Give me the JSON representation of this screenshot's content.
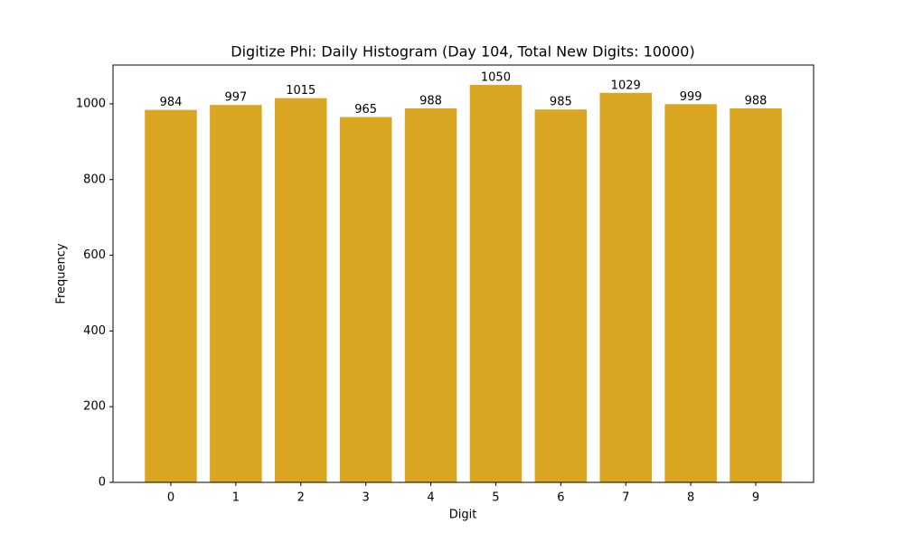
{
  "chart_data": {
    "type": "bar",
    "title": "Digitize Phi: Daily Histogram (Day 104, Total New Digits: 10000)",
    "x_label": "Digit",
    "y_label": "Frequency",
    "categories": [
      "0",
      "1",
      "2",
      "3",
      "4",
      "5",
      "6",
      "7",
      "8",
      "9"
    ],
    "values": [
      984,
      997,
      1015,
      965,
      988,
      1050,
      985,
      1029,
      999,
      988
    ],
    "color": "#daa520",
    "ylim": [
      0,
      1102.5
    ],
    "yticks": [
      0,
      200,
      400,
      600,
      800,
      1000
    ],
    "grid": false,
    "show_value_labels": true
  }
}
